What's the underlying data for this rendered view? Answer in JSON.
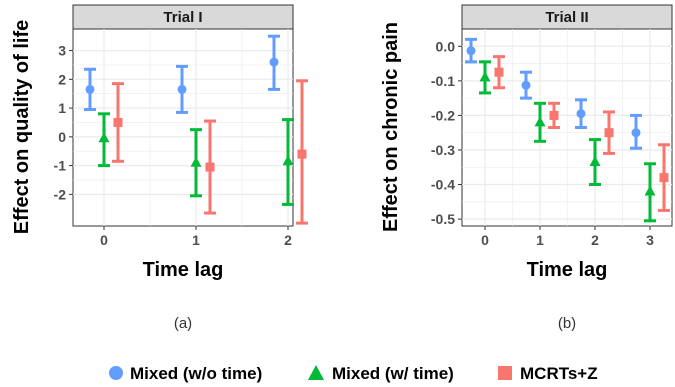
{
  "colors": {
    "mixed_wo_time": "#619CFF",
    "mixed_w_time": "#00BA38",
    "mcrts_z": "#F8766D",
    "panel_bg": "#ffffff",
    "grid": "#ebebeb",
    "strip_bg": "#d9d9d9",
    "border": "#333333"
  },
  "legend": {
    "items": [
      {
        "label": "Mixed (w/o time)",
        "shape": "circle",
        "color": "#619CFF"
      },
      {
        "label": "Mixed (w/ time)",
        "shape": "triangle",
        "color": "#00BA38"
      },
      {
        "label": "MCRTs+Z",
        "shape": "square",
        "color": "#F8766D"
      }
    ],
    "placement": "bottom"
  },
  "chart_data": [
    {
      "type": "scatter",
      "subtitle": "Trial I",
      "caption": "(a)",
      "xlabel": "Time lag",
      "ylabel": "Effect on quality of life",
      "categories": [
        "0",
        "1",
        "2"
      ],
      "ylim": [
        -3.0,
        3.5
      ],
      "yticks": [
        -2,
        -1,
        0,
        1,
        2,
        3
      ],
      "grid": true,
      "series": [
        {
          "name": "Mixed (w/o time)",
          "values": [
            1.65,
            1.65,
            2.6
          ],
          "lower": [
            0.95,
            0.85,
            1.65
          ],
          "upper": [
            2.35,
            2.45,
            3.5
          ]
        },
        {
          "name": "Mixed (w/ time)",
          "values": [
            -0.05,
            -0.9,
            -0.85
          ],
          "lower": [
            -1.0,
            -2.05,
            -2.35
          ],
          "upper": [
            0.8,
            0.25,
            0.6
          ]
        },
        {
          "name": "MCRTs+Z",
          "values": [
            0.5,
            -1.05,
            -0.6
          ],
          "lower": [
            -0.85,
            -2.65,
            -3.0
          ],
          "upper": [
            1.85,
            0.55,
            1.95
          ]
        }
      ]
    },
    {
      "type": "scatter",
      "subtitle": "Trial II",
      "caption": "(b)",
      "xlabel": "Time lag",
      "ylabel": "Effect on chronic pain",
      "categories": [
        "0",
        "1",
        "2",
        "3"
      ],
      "ylim": [
        -0.52,
        0.05
      ],
      "yticks": [
        0.0,
        -0.1,
        -0.2,
        -0.3,
        -0.4,
        -0.5
      ],
      "ytick_labels": [
        "0.0",
        "-0.1",
        "-0.2",
        "-0.3",
        "-0.4",
        "-0.5"
      ],
      "grid": true,
      "series": [
        {
          "name": "Mixed (w/o time)",
          "values": [
            -0.013,
            -0.113,
            -0.195,
            -0.25
          ],
          "lower": [
            -0.045,
            -0.15,
            -0.235,
            -0.295
          ],
          "upper": [
            0.02,
            -0.075,
            -0.155,
            -0.2
          ]
        },
        {
          "name": "Mixed (w/ time)",
          "values": [
            -0.09,
            -0.22,
            -0.335,
            -0.42
          ],
          "lower": [
            -0.135,
            -0.275,
            -0.4,
            -0.505
          ],
          "upper": [
            -0.045,
            -0.165,
            -0.27,
            -0.34
          ]
        },
        {
          "name": "MCRTs+Z",
          "values": [
            -0.075,
            -0.2,
            -0.25,
            -0.38
          ],
          "lower": [
            -0.12,
            -0.235,
            -0.31,
            -0.475
          ],
          "upper": [
            -0.03,
            -0.165,
            -0.19,
            -0.285
          ]
        }
      ]
    }
  ]
}
